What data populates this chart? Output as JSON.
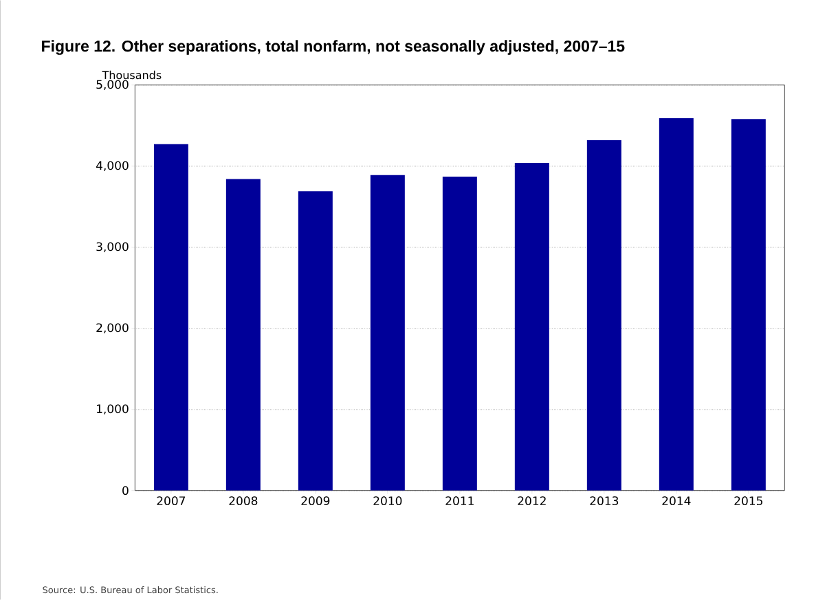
{
  "chart_data": {
    "type": "bar",
    "title": "Figure 12. Other separations, total nonfarm, not seasonally adjusted, 2007–15",
    "ylabel": "Thousands",
    "categories": [
      "2007",
      "2008",
      "2009",
      "2010",
      "2011",
      "2012",
      "2013",
      "2014",
      "2015"
    ],
    "values": [
      4270,
      3840,
      3690,
      3890,
      3870,
      4040,
      4320,
      4590,
      4580
    ],
    "color": "#000099",
    "ylim": [
      0,
      5000
    ],
    "yticks": [
      {
        "value": 0,
        "label": "0"
      },
      {
        "value": 1000,
        "label": "1,000"
      },
      {
        "value": 2000,
        "label": "2,000"
      },
      {
        "value": 3000,
        "label": "3,000"
      },
      {
        "value": 4000,
        "label": "4,000"
      },
      {
        "value": 5000,
        "label": "5,000"
      }
    ],
    "grid": "y",
    "annotations": [
      "Source: U.S. Bureau of Labor Statistics."
    ]
  }
}
